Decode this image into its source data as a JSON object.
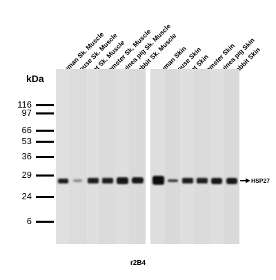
{
  "lanes": [
    "Human Sk. Muscle",
    "Mouse Sk. Muscle",
    "Rat Sk. Muscle",
    "Hamster Sk. Muscle",
    "Guinea pig Sk. Muscle",
    "Rabbit Sk. Muscle",
    "Human Skin",
    "Mouse Skin",
    "Rat Skin",
    "Hamster Skin",
    "Guinea pig Skin",
    "Rabbit Skin"
  ],
  "kda_label": "kDa",
  "markers": [
    "116",
    "97",
    "66",
    "53",
    "36",
    "29",
    "24",
    "6"
  ],
  "target_label": "HSP27",
  "antibody": "r2B4"
}
